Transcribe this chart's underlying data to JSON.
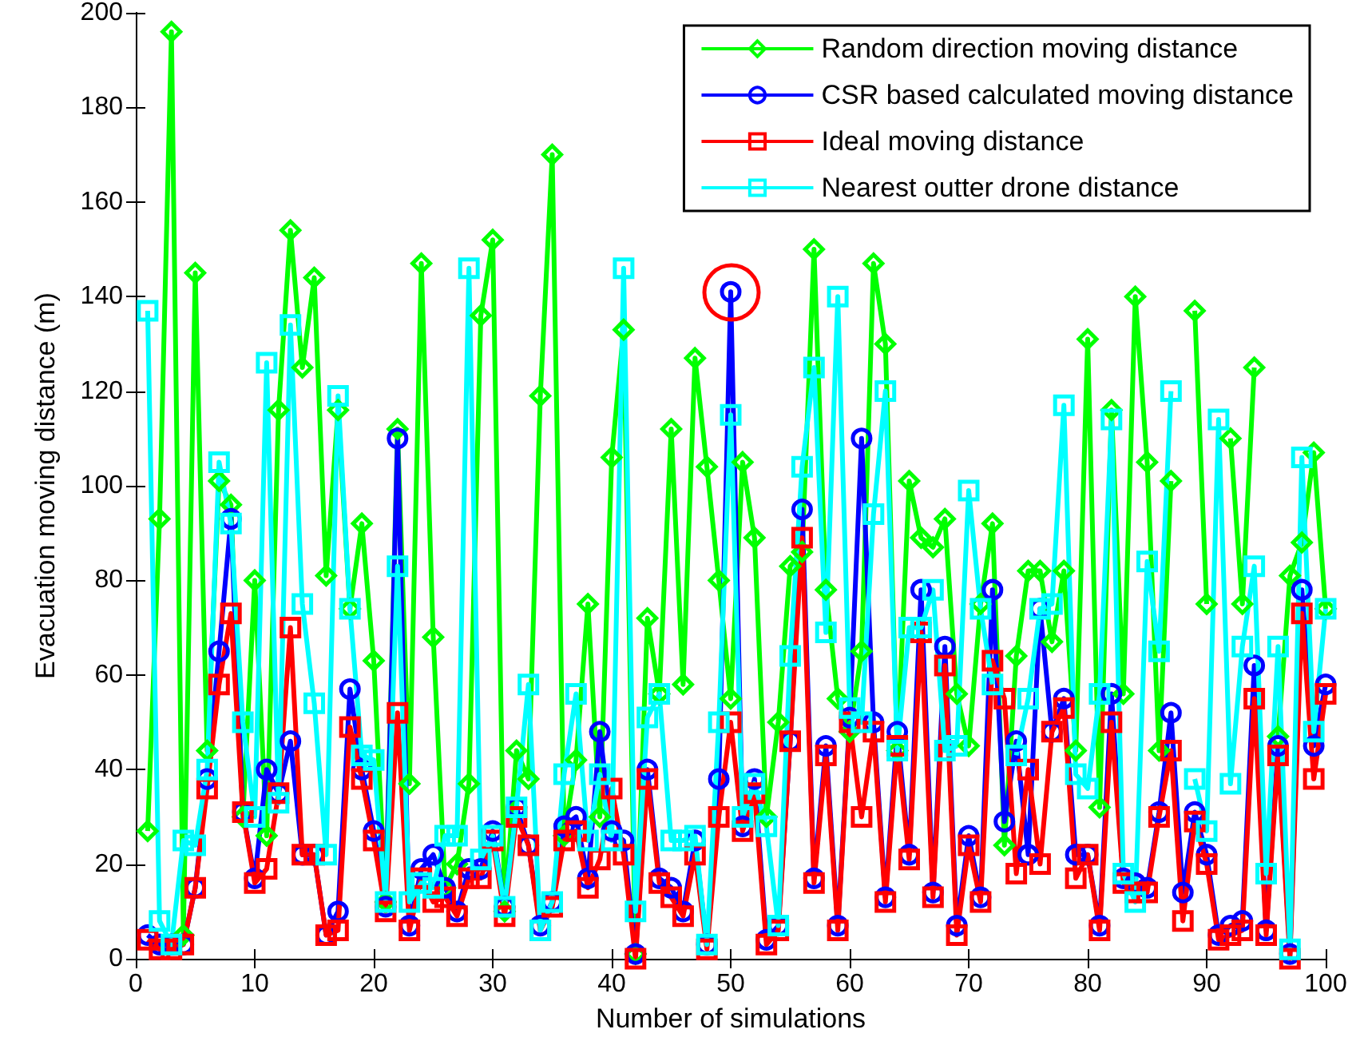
{
  "chart_data": {
    "type": "line",
    "xlabel": "Number of simulations",
    "ylabel": "Evacuation moving distance (m)",
    "x": [
      1,
      2,
      3,
      4,
      5,
      6,
      7,
      8,
      9,
      10,
      11,
      12,
      13,
      14,
      15,
      16,
      17,
      18,
      19,
      20,
      21,
      22,
      23,
      24,
      25,
      26,
      27,
      28,
      29,
      30,
      31,
      32,
      33,
      34,
      35,
      36,
      37,
      38,
      39,
      40,
      41,
      42,
      43,
      44,
      45,
      46,
      47,
      48,
      49,
      50,
      51,
      52,
      53,
      54,
      55,
      56,
      57,
      58,
      59,
      60,
      61,
      62,
      63,
      64,
      65,
      66,
      67,
      68,
      69,
      70,
      71,
      72,
      73,
      74,
      75,
      76,
      77,
      78,
      79,
      80,
      81,
      82,
      83,
      84,
      85,
      86,
      87,
      88,
      89,
      90,
      91,
      92,
      93,
      94,
      95,
      96,
      97,
      98,
      99,
      100
    ],
    "xlim": [
      0,
      100
    ],
    "xticks": [
      0,
      10,
      20,
      30,
      40,
      50,
      60,
      70,
      80,
      90,
      100
    ],
    "ylim": [
      0,
      200
    ],
    "yticks": [
      0,
      20,
      40,
      60,
      80,
      100,
      120,
      140,
      160,
      180,
      200
    ],
    "grid": false,
    "legend": "top right",
    "line_style": "solid",
    "series": [
      {
        "name": "Random direction moving distance",
        "color": "#00ff00",
        "marker": "diamond",
        "values": [
          27,
          93,
          196,
          5,
          145,
          44,
          101,
          96,
          30,
          80,
          26,
          116,
          154,
          125,
          144,
          81,
          116,
          74,
          92,
          63,
          12,
          112,
          37,
          147,
          68,
          15,
          20,
          37,
          136,
          152,
          10,
          44,
          38,
          119,
          170,
          26,
          42,
          75,
          30,
          106,
          133,
          1,
          72,
          56,
          112,
          58,
          127,
          104,
          80,
          55,
          105,
          89,
          30,
          50,
          83,
          86,
          150,
          78,
          55,
          48,
          65,
          147,
          130,
          44,
          101,
          89,
          87,
          93,
          56,
          45,
          75,
          92,
          24,
          64,
          82,
          82,
          67,
          82,
          44,
          131,
          32,
          116,
          56,
          140,
          105,
          44,
          101,
          null,
          137,
          75,
          null,
          110,
          75,
          125,
          null,
          47,
          81,
          88,
          107,
          74
        ]
      },
      {
        "name": "CSR based calculated moving distance",
        "color": "#0000ff",
        "marker": "circle",
        "values": [
          5,
          3,
          3,
          3,
          15,
          38,
          65,
          93,
          31,
          17,
          40,
          35,
          46,
          22,
          22,
          5,
          10,
          57,
          40,
          27,
          11,
          110,
          7,
          19,
          22,
          15,
          10,
          19,
          19,
          27,
          11,
          32,
          24,
          7,
          12,
          28,
          30,
          17,
          48,
          27,
          25,
          1,
          40,
          17,
          15,
          10,
          25,
          3,
          38,
          141,
          28,
          38,
          4,
          7,
          46,
          95,
          17,
          45,
          7,
          51,
          110,
          50,
          13,
          48,
          22,
          78,
          14,
          66,
          7,
          26,
          13,
          78,
          29,
          46,
          22,
          74,
          48,
          55,
          22,
          22,
          7,
          56,
          17,
          16,
          15,
          31,
          52,
          14,
          31,
          22,
          5,
          7,
          8,
          62,
          6,
          45,
          1,
          78,
          45,
          58
        ]
      },
      {
        "name": "Ideal moving distance",
        "color": "#ff0000",
        "marker": "square",
        "values": [
          4,
          2,
          2,
          3,
          15,
          36,
          58,
          73,
          31,
          16,
          19,
          35,
          70,
          22,
          22,
          5,
          6,
          49,
          38,
          25,
          10,
          52,
          6,
          17,
          12,
          13,
          9,
          17,
          17,
          25,
          9,
          30,
          24,
          6,
          11,
          25,
          27,
          15,
          21,
          36,
          22,
          0,
          38,
          16,
          13,
          9,
          22,
          2,
          30,
          50,
          27,
          35,
          3,
          6,
          46,
          89,
          16,
          43,
          6,
          50,
          30,
          48,
          12,
          45,
          21,
          69,
          13,
          62,
          5,
          24,
          12,
          63,
          55,
          18,
          40,
          20,
          48,
          53,
          17,
          22,
          6,
          50,
          16,
          14,
          14,
          30,
          44,
          8,
          29,
          20,
          4,
          5,
          6,
          55,
          5,
          43,
          0,
          73,
          38,
          56
        ]
      },
      {
        "name": "Nearest outter drone distance",
        "color": "#00ffff",
        "marker": "square",
        "values": [
          137,
          8,
          3,
          25,
          24,
          40,
          105,
          92,
          50,
          30,
          126,
          33,
          134,
          75,
          54,
          22,
          119,
          74,
          43,
          42,
          12,
          83,
          12,
          16,
          15,
          26,
          26,
          146,
          21,
          26,
          11,
          32,
          58,
          6,
          12,
          39,
          56,
          25,
          39,
          25,
          146,
          10,
          51,
          56,
          25,
          25,
          26,
          3,
          50,
          115,
          30,
          37,
          28,
          7,
          64,
          104,
          125,
          69,
          140,
          53,
          50,
          94,
          120,
          44,
          70,
          70,
          78,
          44,
          45,
          99,
          74,
          58,
          null,
          43,
          55,
          74,
          75,
          117,
          39,
          36,
          56,
          114,
          18,
          12,
          84,
          65,
          120,
          null,
          38,
          27,
          114,
          37,
          66,
          83,
          18,
          66,
          2,
          106,
          48,
          74
        ]
      }
    ]
  }
}
